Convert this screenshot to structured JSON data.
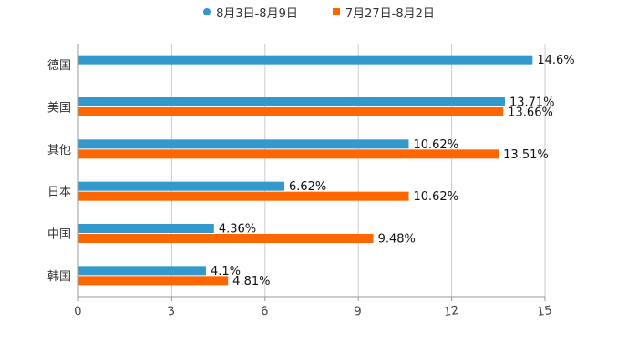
{
  "chart_data": {
    "type": "bar",
    "orientation": "horizontal",
    "categories": [
      "德国",
      "美国",
      "其他",
      "日本",
      "中国",
      "韩国"
    ],
    "series": [
      {
        "name": "8月3日-8月9日",
        "color": "#3399CC",
        "values": [
          14.6,
          13.71,
          10.62,
          6.62,
          4.36,
          4.1
        ],
        "labels": [
          "14.6%",
          "13.71%",
          "10.62%",
          "6.62%",
          "4.36%",
          "4.1%"
        ]
      },
      {
        "name": "7月27日-8月2日",
        "color": "#FF6600",
        "values": [
          null,
          13.66,
          13.51,
          10.62,
          9.48,
          4.81
        ],
        "labels": [
          "",
          "13.66%",
          "13.51%",
          "10.62%",
          "9.48%",
          "4.81%"
        ]
      }
    ],
    "xlim": [
      0,
      15
    ],
    "xticks": [
      "0",
      "3",
      "6",
      "9",
      "12",
      "15"
    ],
    "legend_position": "top-center",
    "grid": true
  }
}
